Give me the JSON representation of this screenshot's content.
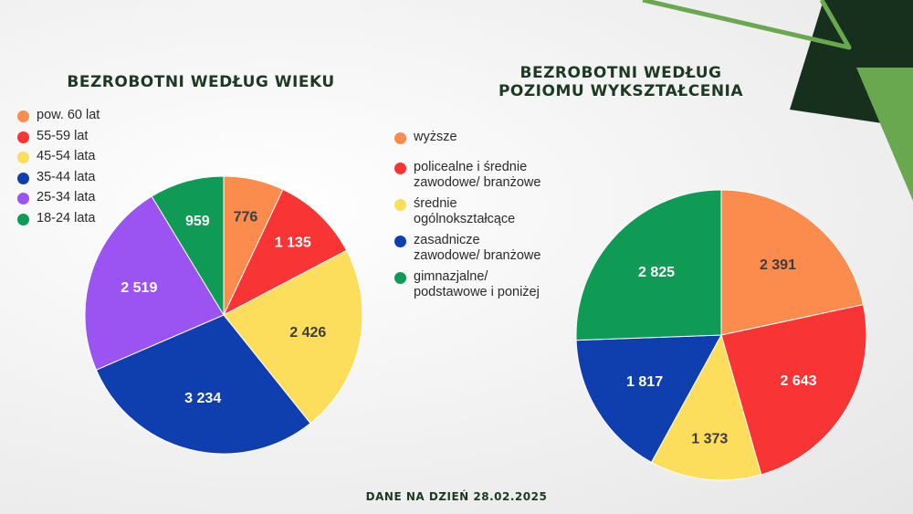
{
  "chart_data": [
    {
      "type": "pie",
      "title": "BEZROBOTNI WEDŁUG WIEKU",
      "legend_position": "top-left",
      "categories": [
        "pow. 60 lat",
        "55-59 lat",
        "45-54 lata",
        "35-44 lata",
        "25-34 lata",
        "18-24 lata"
      ],
      "values": [
        776,
        1135,
        2426,
        3234,
        2519,
        959
      ],
      "value_labels": [
        "776",
        "1 135",
        "2 426",
        "3 234",
        "2 519",
        "959"
      ],
      "colors": [
        "#fb8c4e",
        "#f93434",
        "#fddd5c",
        "#0f3fae",
        "#9b53f2",
        "#0f9a55"
      ],
      "label_colors": [
        "#3d3d3d",
        "#ffffff",
        "#3d3d3d",
        "#ffffff",
        "#ffffff",
        "#ffffff"
      ]
    },
    {
      "type": "pie",
      "title": "BEZROBOTNI WEDŁUG\nPOZIOMU WYKSZTAŁCENIA",
      "legend_position": "left",
      "categories": [
        "wyższe",
        "policealne i średnie\nzawodowe/ branżowe",
        "średnie\nogólnokształcące",
        "zasadnicze\nzawodowe/ branżowe",
        "gimnazjalne/\npodstawowe i poniżej"
      ],
      "values": [
        2391,
        2643,
        1373,
        1817,
        2825
      ],
      "value_labels": [
        "2 391",
        "2 643",
        "1 373",
        "1 817",
        "2 825"
      ],
      "colors": [
        "#fb8c4e",
        "#f93434",
        "#fddd5c",
        "#0f3fae",
        "#0f9a55"
      ],
      "label_colors": [
        "#3d3d3d",
        "#ffffff",
        "#3d3d3d",
        "#ffffff",
        "#ffffff"
      ]
    }
  ],
  "footer": "DANE NA DZIEŃ 28.02.2025",
  "theme": {
    "dark_green": "#16301d",
    "light_green": "#6aa84f",
    "title_color": "#1c3a22"
  }
}
